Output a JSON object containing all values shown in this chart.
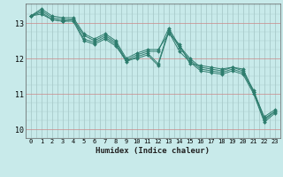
{
  "title": "",
  "xlabel": "Humidex (Indice chaleur)",
  "background_color": "#c8eaea",
  "grid_color_major": "#cc9999",
  "grid_color_minor": "#aacccc",
  "line_color": "#2e7d6e",
  "marker_color": "#2e7d6e",
  "xlim": [
    -0.5,
    23.5
  ],
  "ylim": [
    9.75,
    13.55
  ],
  "yticks": [
    10,
    11,
    12,
    13
  ],
  "xticks": [
    0,
    1,
    2,
    3,
    4,
    5,
    6,
    7,
    8,
    9,
    10,
    11,
    12,
    13,
    14,
    15,
    16,
    17,
    18,
    19,
    20,
    21,
    22,
    23
  ],
  "series": [
    [
      13.2,
      13.4,
      13.2,
      13.15,
      13.15,
      12.7,
      12.55,
      12.7,
      12.5,
      12.0,
      12.15,
      12.25,
      12.25,
      12.7,
      12.4,
      11.85,
      11.8,
      11.75,
      11.7,
      11.75,
      11.7,
      11.05,
      10.35,
      10.55
    ],
    [
      13.2,
      13.35,
      13.15,
      13.1,
      13.1,
      12.65,
      12.5,
      12.65,
      12.45,
      11.95,
      12.1,
      12.2,
      12.2,
      12.85,
      12.35,
      12.0,
      11.75,
      11.7,
      11.65,
      11.75,
      11.65,
      11.1,
      10.3,
      10.5
    ],
    [
      13.2,
      13.3,
      13.1,
      13.05,
      13.1,
      12.55,
      12.45,
      12.6,
      12.4,
      11.9,
      12.05,
      12.15,
      11.85,
      12.8,
      12.3,
      11.95,
      11.7,
      11.65,
      11.6,
      11.7,
      11.6,
      11.05,
      10.25,
      10.5
    ],
    [
      13.2,
      13.25,
      13.1,
      13.05,
      13.05,
      12.5,
      12.4,
      12.55,
      12.35,
      11.95,
      12.0,
      12.1,
      11.8,
      12.75,
      12.2,
      11.9,
      11.65,
      11.6,
      11.55,
      11.65,
      11.55,
      11.0,
      10.2,
      10.45
    ]
  ],
  "tick_fontsize": 5.0,
  "xlabel_fontsize": 6.5,
  "ylabel_fontsize": 6.0
}
